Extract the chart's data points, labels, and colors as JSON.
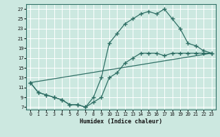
{
  "xlabel": "Humidex (Indice chaleur)",
  "bg_color": "#cce8e0",
  "grid_color": "#ffffff",
  "line_color": "#2e6e64",
  "xlim": [
    -0.5,
    23.5
  ],
  "ylim": [
    6.5,
    28
  ],
  "yticks": [
    7,
    9,
    11,
    13,
    15,
    17,
    19,
    21,
    23,
    25,
    27
  ],
  "xticks": [
    0,
    1,
    2,
    3,
    4,
    5,
    6,
    7,
    8,
    9,
    10,
    11,
    12,
    13,
    14,
    15,
    16,
    17,
    18,
    19,
    20,
    21,
    22,
    23
  ],
  "line1_x": [
    0,
    1,
    2,
    3,
    4,
    5,
    6,
    7,
    8,
    9,
    10,
    11,
    12,
    13,
    14,
    15,
    16,
    17,
    18,
    19,
    20,
    21,
    22,
    23
  ],
  "line1_y": [
    12,
    10,
    9.5,
    9,
    8.5,
    7.5,
    7.5,
    7,
    8,
    9,
    13,
    14,
    16,
    17,
    18,
    18,
    18,
    17.5,
    18,
    18,
    18,
    18,
    18,
    18
  ],
  "line2_x": [
    0,
    1,
    2,
    3,
    4,
    5,
    6,
    7,
    8,
    9,
    10,
    11,
    12,
    13,
    14,
    15,
    16,
    17,
    18,
    19,
    20,
    21,
    22,
    23
  ],
  "line2_y": [
    12,
    10,
    9.5,
    9,
    8.5,
    7.5,
    7.5,
    7,
    9,
    13,
    20,
    22,
    24,
    25,
    26,
    26.5,
    26,
    27,
    25,
    23,
    20,
    19.5,
    18.5,
    18
  ],
  "line3_x": [
    0,
    23
  ],
  "line3_y": [
    12,
    18
  ]
}
